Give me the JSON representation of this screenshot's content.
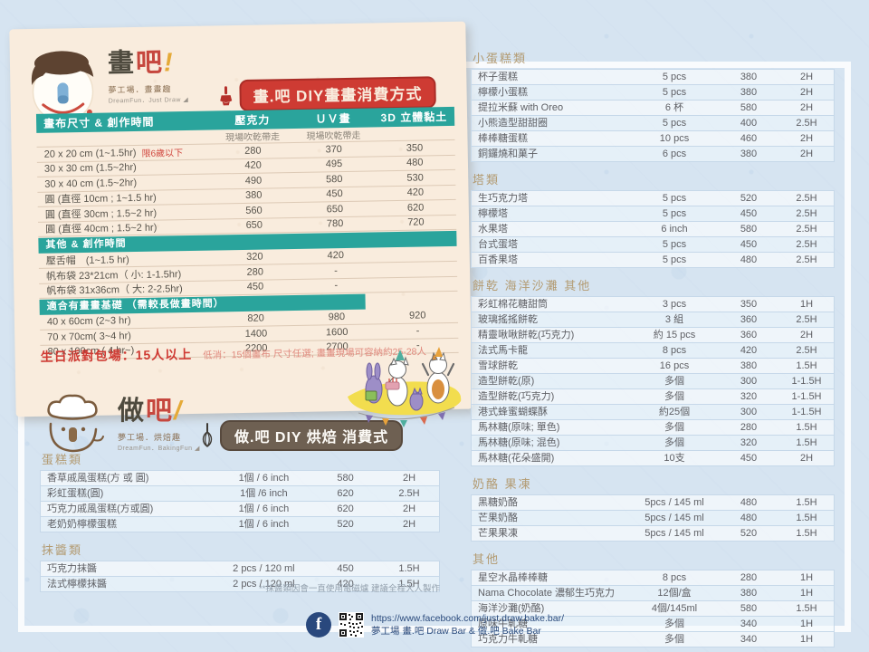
{
  "colors": {
    "teal": "#2aa49c",
    "red_badge": "#ce3b33",
    "tan_title": "#b39b72",
    "brown_badge": "#6e6052",
    "navy": "#2a4a7c",
    "card_cream": "#f9ecdd",
    "page_blue": "#d6e4f1"
  },
  "draw": {
    "logo": {
      "name_black": "畫",
      "name_red": "吧",
      "bang": "!",
      "sub1": "夢工場．畫畫趣",
      "sub2": "DreamFun．Just Draw ◢"
    },
    "title": "畫.吧 DIY畫畫消費方式",
    "table": {
      "columns": [
        "畫布尺寸 & 創作時間",
        "壓克力",
        "ＵＶ畫",
        "3D 立體黏土"
      ],
      "sub_note": "現場吹乾帶走",
      "rows": [
        {
          "kind": "data",
          "name": "20 x 20 cm (1~1.5hr)",
          "note": "限6歲以下",
          "v": [
            "280",
            "370",
            "350"
          ]
        },
        {
          "kind": "data",
          "name": "30 x 30 cm (1.5~2hr)",
          "v": [
            "420",
            "495",
            "480"
          ]
        },
        {
          "kind": "data",
          "name": "30 x 40 cm (1.5~2hr)",
          "v": [
            "490",
            "580",
            "530"
          ]
        },
        {
          "kind": "data",
          "name": "圓 (直徑 10cm ; 1~1.5 hr)",
          "v": [
            "380",
            "450",
            "420"
          ]
        },
        {
          "kind": "data",
          "name": "圓 (直徑 30cm ; 1.5~2 hr)",
          "v": [
            "560",
            "650",
            "620"
          ]
        },
        {
          "kind": "data",
          "name": "圓 (直徑 40cm ; 1.5~2 hr)",
          "v": [
            "650",
            "780",
            "720"
          ]
        },
        {
          "kind": "section",
          "name": "其他 & 創作時間",
          "width": "100%"
        },
        {
          "kind": "data",
          "name": "壓舌帽　(1~1.5 hr)",
          "v": [
            "320",
            "420",
            ""
          ]
        },
        {
          "kind": "data",
          "name": "帆布袋 23*21cm（ 小: 1-1.5hr)",
          "v": [
            "280",
            "-",
            ""
          ]
        },
        {
          "kind": "data",
          "name": "帆布袋 31x36cm（ 大: 2-2.5hr)",
          "v": [
            "450",
            "-",
            ""
          ]
        },
        {
          "kind": "section",
          "name": "適合有畫畫基礎 （需較長做畫時間）",
          "width": "78%"
        },
        {
          "kind": "data",
          "name": "40 x 60cm (2~3 hr)",
          "v": [
            "820",
            "980",
            "920"
          ]
        },
        {
          "kind": "data",
          "name": "70 x 70cm( 3~4 hr)",
          "v": [
            "1400",
            "1600",
            "-"
          ]
        },
        {
          "kind": "data",
          "name": "80 x 100cm ( 4 hr~)",
          "v": [
            "2200",
            "2700",
            "-"
          ]
        }
      ]
    },
    "party_note_bold": "生日派對包場：15人以上",
    "party_note_small": "低消：15個畫布 尺寸任選; 畫畫現場可容納約25-28人"
  },
  "bake": {
    "logo": {
      "name_black": "做",
      "name_red": "吧",
      "bang": "/",
      "sub1": "夢工場．烘焙趣",
      "sub2": "DreamFun．BakingFun ◢"
    },
    "title": "做.吧 DIY 烘焙 消費式",
    "groups": [
      {
        "title": "蛋糕類",
        "rows": [
          {
            "name": "香草戚風蛋糕(方 或 圓)",
            "qty": "1個 / 6 inch",
            "price": "580",
            "time": "2H"
          },
          {
            "name": "彩虹蛋糕(圓)",
            "qty": "1個 /6 inch",
            "price": "620",
            "time": "2.5H"
          },
          {
            "name": "巧克力戚風蛋糕(方或圓)",
            "qty": "1個 / 6 inch",
            "price": "620",
            "time": "2H"
          },
          {
            "name": "老奶奶檸檬蛋糕",
            "qty": "1個 / 6 inch",
            "price": "520",
            "time": "2H"
          }
        ]
      },
      {
        "title": "抹醬類",
        "rows": [
          {
            "name": "巧克力抹醬",
            "qty": "2 pcs / 120 ml",
            "price": "450",
            "time": "1.5H"
          },
          {
            "name": "法式檸檬抹醬",
            "qty": "2 pcs / 120 ml",
            "price": "420",
            "time": "1.5H"
          }
        ]
      }
    ],
    "note": "**抹醬類因會一直使用電磁爐 建議全程大人製作"
  },
  "menu": {
    "groups": [
      {
        "title": "小蛋糕類",
        "rows": [
          {
            "name": "杯子蛋糕",
            "qty": "5 pcs",
            "price": "380",
            "time": "2H"
          },
          {
            "name": "檸檬小蛋糕",
            "qty": "5 pcs",
            "price": "380",
            "time": "2H"
          },
          {
            "name": "提拉米蘇 with Oreo",
            "qty": "6 杯",
            "price": "580",
            "time": "2H"
          },
          {
            "name": "小熊造型甜甜圈",
            "qty": "5 pcs",
            "price": "400",
            "time": "2.5H"
          },
          {
            "name": "棒棒糖蛋糕",
            "qty": "10 pcs",
            "price": "460",
            "time": "2H"
          },
          {
            "name": "銅鑼燒和菓子",
            "qty": "6 pcs",
            "price": "380",
            "time": "2H"
          }
        ]
      },
      {
        "title": "塔類",
        "rows": [
          {
            "name": "生巧克力塔",
            "qty": "5 pcs",
            "price": "520",
            "time": "2.5H"
          },
          {
            "name": "檸檬塔",
            "qty": "5 pcs",
            "price": "450",
            "time": "2.5H"
          },
          {
            "name": "水果塔",
            "qty": "6 inch",
            "price": "580",
            "time": "2.5H"
          },
          {
            "name": "台式蛋塔",
            "qty": "5 pcs",
            "price": "450",
            "time": "2.5H"
          },
          {
            "name": "百香果塔",
            "qty": "5 pcs",
            "price": "480",
            "time": "2.5H"
          }
        ]
      },
      {
        "title": "餅乾 海洋沙灘 其他",
        "rows": [
          {
            "name": "彩虹棉花糖甜筒",
            "qty": "3 pcs",
            "price": "350",
            "time": "1H"
          },
          {
            "name": "玻璃搖搖餅乾",
            "qty": "3 組",
            "price": "360",
            "time": "2.5H"
          },
          {
            "name": "精靈啾啾餅乾(巧克力)",
            "qty": "約 15 pcs",
            "price": "360",
            "time": "2H"
          },
          {
            "name": "法式馬卡龍",
            "qty": "8 pcs",
            "price": "420",
            "time": "2.5H"
          },
          {
            "name": "雪球餅乾",
            "qty": "16 pcs",
            "price": "380",
            "time": "1.5H"
          },
          {
            "name": "造型餅乾(原)",
            "qty": "多個",
            "price": "300",
            "time": "1-1.5H"
          },
          {
            "name": "造型餅乾(巧克力)",
            "qty": "多個",
            "price": "320",
            "time": "1-1.5H"
          },
          {
            "name": "港式蜂蜜蝴蝶酥",
            "qty": "約25個",
            "price": "300",
            "time": "1-1.5H"
          },
          {
            "name": "馬林糖(原味; 單色)",
            "qty": "多個",
            "price": "280",
            "time": "1.5H"
          },
          {
            "name": "馬林糖(原味; 混色)",
            "qty": "多個",
            "price": "320",
            "time": "1.5H"
          },
          {
            "name": "馬林糖(花朵盛開)",
            "qty": "10支",
            "price": "450",
            "time": "2H"
          }
        ]
      },
      {
        "title": "奶酪 果凍",
        "rows": [
          {
            "name": "黑糖奶酪",
            "qty": "5pcs / 145 ml",
            "price": "480",
            "time": "1.5H"
          },
          {
            "name": "芒果奶酪",
            "qty": "5pcs / 145 ml",
            "price": "480",
            "time": "1.5H"
          },
          {
            "name": "芒果果凍",
            "qty": "5pcs / 145 ml",
            "price": "520",
            "time": "1.5H"
          }
        ]
      },
      {
        "title": "其他",
        "rows": [
          {
            "name": "星空水晶棒棒糖",
            "qty": "8 pcs",
            "price": "280",
            "time": "1H"
          },
          {
            "name": "Nama Chocolate 濃郁生巧克力",
            "qty": "12個/盒",
            "price": "380",
            "time": "1H"
          },
          {
            "name": "海洋沙灘(奶酪)",
            "qty": "4個/145ml",
            "price": "580",
            "time": "1.5H"
          },
          {
            "name": "原味牛軋糖",
            "qty": "多個",
            "price": "340",
            "time": "1H"
          },
          {
            "name": "巧克力牛軋糖",
            "qty": "多個",
            "price": "340",
            "time": "1H"
          }
        ]
      }
    ]
  },
  "footer": {
    "fb_letter": "f",
    "url": "https://www.facebook.com/just.draw.bake.bar/",
    "name": "夢工場 畫.吧 Draw Bar & 做.吧 Bake Bar"
  }
}
